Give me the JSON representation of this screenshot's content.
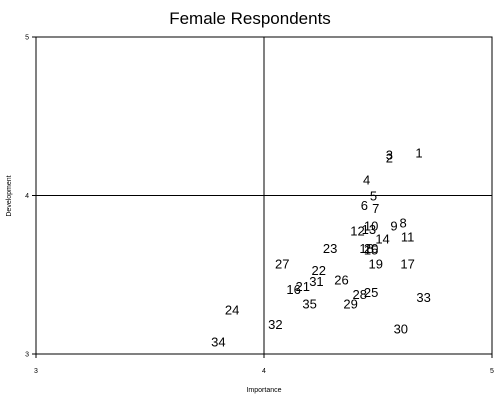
{
  "chart_data": {
    "type": "scatter",
    "title": "Female Respondents",
    "xlabel": "Importance",
    "ylabel": "Development",
    "xlim": [
      3,
      5
    ],
    "ylim": [
      3,
      5
    ],
    "xticks": [
      "3",
      "4",
      "5"
    ],
    "yticks": [
      "3",
      "4",
      "5"
    ],
    "reference_lines": {
      "x": 4,
      "y": 4
    },
    "grid": false,
    "legend": "none",
    "marker": "label-only",
    "points": [
      {
        "label": "1",
        "x": 4.68,
        "y": 4.27
      },
      {
        "label": "2",
        "x": 4.55,
        "y": 4.24
      },
      {
        "label": "3",
        "x": 4.55,
        "y": 4.26
      },
      {
        "label": "4",
        "x": 4.45,
        "y": 4.1
      },
      {
        "label": "5",
        "x": 4.48,
        "y": 4.0
      },
      {
        "label": "6",
        "x": 4.44,
        "y": 3.94
      },
      {
        "label": "7",
        "x": 4.49,
        "y": 3.92
      },
      {
        "label": "8",
        "x": 4.61,
        "y": 3.83
      },
      {
        "label": "9",
        "x": 4.57,
        "y": 3.81
      },
      {
        "label": "10",
        "x": 4.47,
        "y": 3.81
      },
      {
        "label": "11",
        "x": 4.63,
        "y": 3.74
      },
      {
        "label": "12",
        "x": 4.41,
        "y": 3.78
      },
      {
        "label": "13",
        "x": 4.46,
        "y": 3.79
      },
      {
        "label": "14",
        "x": 4.52,
        "y": 3.73
      },
      {
        "label": "15",
        "x": 4.47,
        "y": 3.66
      },
      {
        "label": "16",
        "x": 4.13,
        "y": 3.41
      },
      {
        "label": "17",
        "x": 4.63,
        "y": 3.57
      },
      {
        "label": "18",
        "x": 4.45,
        "y": 3.67
      },
      {
        "label": "19",
        "x": 4.49,
        "y": 3.57
      },
      {
        "label": "20",
        "x": 4.47,
        "y": 3.67
      },
      {
        "label": "21",
        "x": 4.17,
        "y": 3.43
      },
      {
        "label": "22",
        "x": 4.24,
        "y": 3.53
      },
      {
        "label": "23",
        "x": 4.29,
        "y": 3.67
      },
      {
        "label": "24",
        "x": 3.86,
        "y": 3.28
      },
      {
        "label": "25",
        "x": 4.47,
        "y": 3.39
      },
      {
        "label": "26",
        "x": 4.34,
        "y": 3.47
      },
      {
        "label": "27",
        "x": 4.08,
        "y": 3.57
      },
      {
        "label": "28",
        "x": 4.42,
        "y": 3.38
      },
      {
        "label": "29",
        "x": 4.38,
        "y": 3.32
      },
      {
        "label": "30",
        "x": 4.6,
        "y": 3.16
      },
      {
        "label": "31",
        "x": 4.23,
        "y": 3.46
      },
      {
        "label": "32",
        "x": 4.05,
        "y": 3.19
      },
      {
        "label": "33",
        "x": 4.7,
        "y": 3.36
      },
      {
        "label": "34",
        "x": 3.8,
        "y": 3.08
      },
      {
        "label": "35",
        "x": 4.2,
        "y": 3.32
      }
    ]
  }
}
